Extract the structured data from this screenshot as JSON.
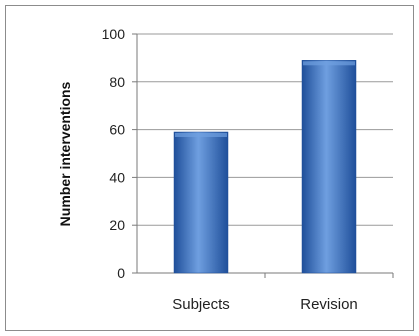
{
  "chart_data": {
    "type": "bar",
    "categories": [
      "Subjects",
      "Revision"
    ],
    "values": [
      59,
      89
    ],
    "title": "",
    "xlabel": "",
    "ylabel": "Number interventions",
    "ylim": [
      0,
      100
    ],
    "yticks": [
      0,
      20,
      40,
      60,
      80,
      100
    ],
    "grid": true,
    "legend": "none",
    "colors": {
      "bar_dark": "#1f4f9a",
      "bar_mid": "#3f78c6",
      "bar_light": "#6f9fe0",
      "grid": "#9a9a9a",
      "axis": "#7a7a7a"
    }
  }
}
